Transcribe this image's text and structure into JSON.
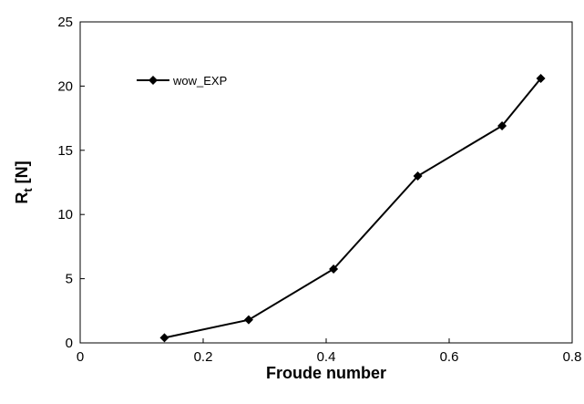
{
  "chart_data": {
    "type": "line",
    "title": "",
    "xlabel": "Froude number",
    "ylabel_main": "R",
    "ylabel_sub": "t",
    "ylabel_unit": " [N]",
    "xlim": [
      0,
      0.8
    ],
    "ylim": [
      0,
      25
    ],
    "x_ticks": [
      0,
      0.2,
      0.4,
      0.6,
      0.8
    ],
    "x_tick_labels": [
      "0",
      "0.2",
      "0.4",
      "0.6",
      "0.8"
    ],
    "y_ticks": [
      0,
      5,
      10,
      15,
      20,
      25
    ],
    "y_tick_labels": [
      "0",
      "5",
      "10",
      "15",
      "20",
      "25"
    ],
    "grid": false,
    "legend_position": "top-left",
    "series": [
      {
        "name": "wow_EXP",
        "color": "#000000",
        "marker": "diamond",
        "x": [
          0.137,
          0.274,
          0.412,
          0.549,
          0.686,
          0.749
        ],
        "y": [
          0.4,
          1.8,
          5.75,
          13.0,
          16.9,
          20.6
        ]
      }
    ]
  }
}
